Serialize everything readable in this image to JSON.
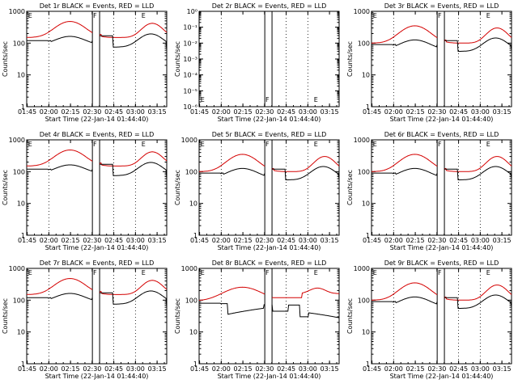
{
  "colors": {
    "events": "#000000",
    "lld": "#d40000",
    "axis": "#000000",
    "background": "#ffffff"
  },
  "start_label": "Start Time (22-Jan-14 01:44:40)",
  "ylabel": "Counts/sec",
  "x_tick_labels": [
    "01:45",
    "02:00",
    "02:15",
    "02:30",
    "02:45",
    "03:00",
    "03:15"
  ],
  "x_ticks_min": [
    0.33,
    15.33,
    30.33,
    45.33,
    60.33,
    75.33,
    90.33
  ],
  "x_range_min": [
    0,
    97
  ],
  "grid_x_min": [
    15.33,
    60.33,
    75.33
  ],
  "marker_lines_min": [
    45.5,
    50.5
  ],
  "markers": [
    {
      "text": "E",
      "t": 1.0
    },
    {
      "text": "F",
      "t": 46.0
    },
    {
      "text": "E",
      "t": 79.5
    }
  ],
  "log_ticks_normal": [
    "1",
    "10",
    "100",
    "1000"
  ],
  "log_ticks_2r": [
    "10⁰",
    "10⁻¹",
    "10⁻²",
    "10⁻³",
    "10⁻⁴",
    "10⁻⁵",
    "10⁻⁶"
  ],
  "chart_data": [
    {
      "type": "line",
      "title": "Det 1r BLACK = Events, RED = LLD",
      "ylim": [
        1,
        1000
      ],
      "yscale": "log",
      "profile": "A",
      "series": [
        {
          "name": "Events",
          "color": "#000000"
        },
        {
          "name": "LLD",
          "color": "#d40000"
        }
      ]
    },
    {
      "type": "line",
      "title": "Det 2r BLACK = Events, RED = LLD",
      "ylim": [
        1e-06,
        1
      ],
      "yscale": "log",
      "profile": "empty",
      "series": []
    },
    {
      "type": "line",
      "title": "Det 3r BLACK = Events, RED = LLD",
      "ylim": [
        1,
        1000
      ],
      "yscale": "log",
      "profile": "B",
      "series": [
        {
          "name": "Events",
          "color": "#000000"
        },
        {
          "name": "LLD",
          "color": "#d40000"
        }
      ]
    },
    {
      "type": "line",
      "title": "Det 4r BLACK = Events, RED = LLD",
      "ylim": [
        1,
        1000
      ],
      "yscale": "log",
      "profile": "A",
      "series": [
        {
          "name": "Events",
          "color": "#000000"
        },
        {
          "name": "LLD",
          "color": "#d40000"
        }
      ]
    },
    {
      "type": "line",
      "title": "Det 5r BLACK = Events, RED = LLD",
      "ylim": [
        1,
        1000
      ],
      "yscale": "log",
      "profile": "B",
      "series": [
        {
          "name": "Events",
          "color": "#000000"
        },
        {
          "name": "LLD",
          "color": "#d40000"
        }
      ]
    },
    {
      "type": "line",
      "title": "Det 6r BLACK = Events, RED = LLD",
      "ylim": [
        1,
        1000
      ],
      "yscale": "log",
      "profile": "B",
      "series": [
        {
          "name": "Events",
          "color": "#000000"
        },
        {
          "name": "LLD",
          "color": "#d40000"
        }
      ]
    },
    {
      "type": "line",
      "title": "Det 7r BLACK = Events, RED = LLD",
      "ylim": [
        1,
        1000
      ],
      "yscale": "log",
      "profile": "A",
      "series": [
        {
          "name": "Events",
          "color": "#000000"
        },
        {
          "name": "LLD",
          "color": "#d40000"
        }
      ]
    },
    {
      "type": "line",
      "title": "Det 8r BLACK = Events, RED = LLD",
      "ylim": [
        1,
        1000
      ],
      "yscale": "log",
      "profile": "C",
      "series": [
        {
          "name": "Events",
          "color": "#000000"
        },
        {
          "name": "LLD",
          "color": "#d40000"
        }
      ]
    },
    {
      "type": "line",
      "title": "Det 9r BLACK = Events, RED = LLD",
      "ylim": [
        1,
        1000
      ],
      "yscale": "log",
      "profile": "B",
      "series": [
        {
          "name": "Events",
          "color": "#000000"
        },
        {
          "name": "LLD",
          "color": "#d40000"
        }
      ]
    }
  ]
}
